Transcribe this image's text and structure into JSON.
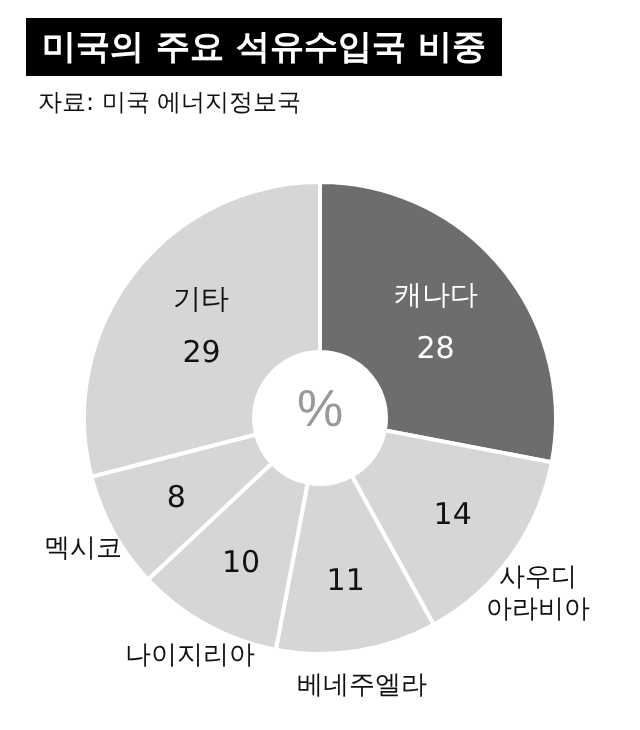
{
  "chart_data": {
    "type": "donut",
    "title": "미국의 주요 석유수입국 비중",
    "subtitle": "자료: 미국 에너지정보국",
    "categories": [
      "캐나다",
      "사우디 아라비아",
      "베네주엘라",
      "나이지리아",
      "멕시코",
      "기타"
    ],
    "values": [
      28,
      14,
      11,
      10,
      8,
      29
    ],
    "colors": [
      "#6d6d6d",
      "#d6d6d6",
      "#d6d6d6",
      "#d6d6d6",
      "#d6d6d6",
      "#d6d6d6"
    ],
    "data_labels": true,
    "annotations": [
      "%"
    ]
  }
}
